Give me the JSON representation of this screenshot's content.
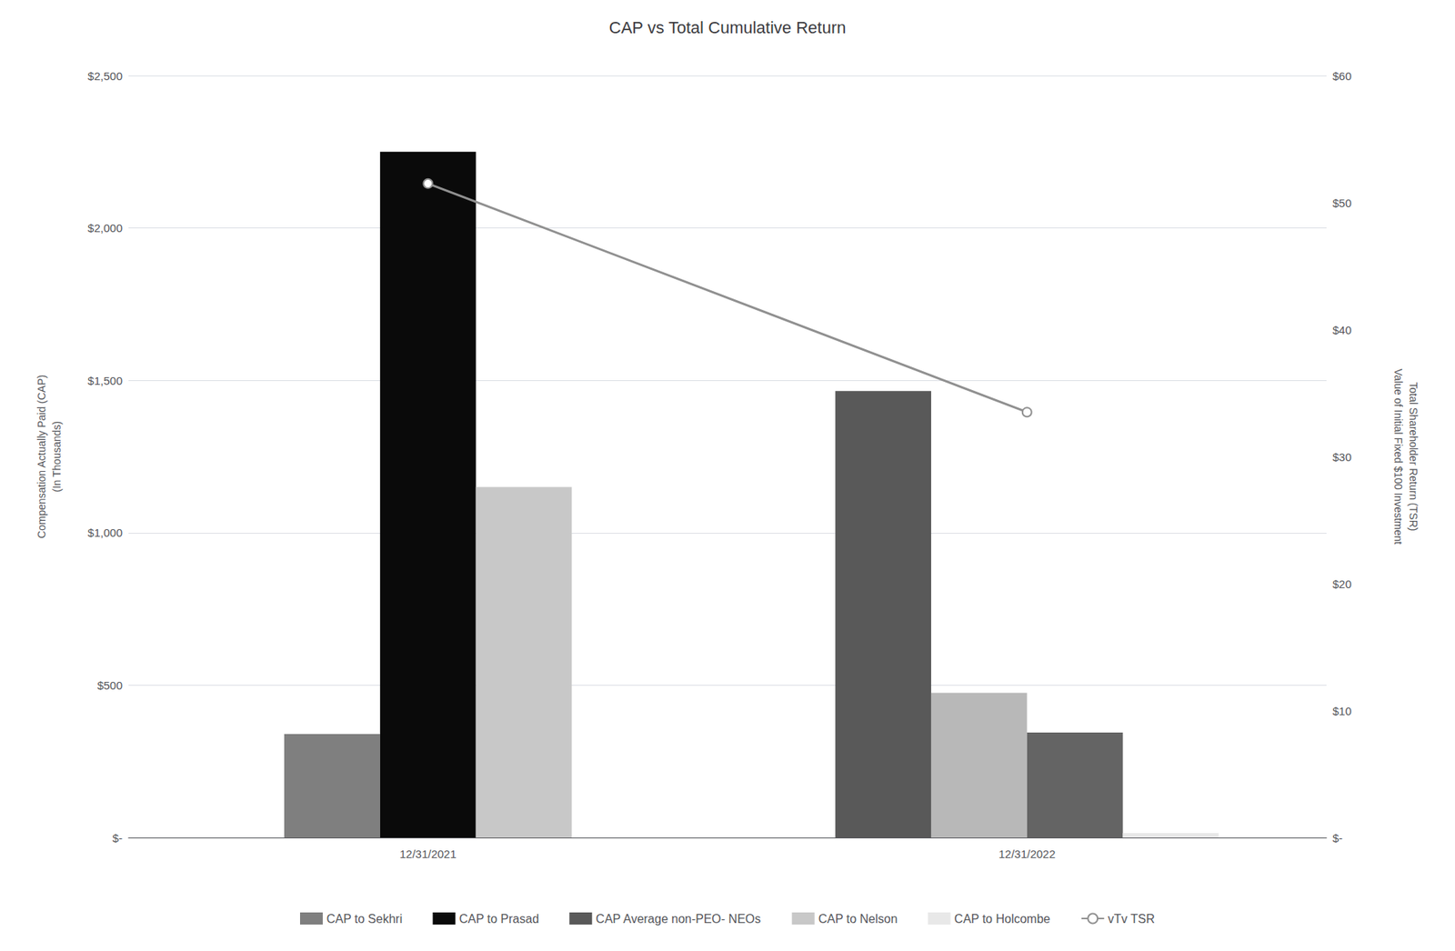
{
  "chart_data": {
    "type": "bar",
    "title": "CAP vs Total Cumulative Return",
    "ylabel": "Compensation Actually Paid (CAP)\n(In Thousands)",
    "y2label": "Total Shareholder Return (TSR)\nValue of Initial Fixed $100 Investment",
    "categories": [
      "12/31/2021",
      "12/31/2022"
    ],
    "ylim": [
      0,
      2500
    ],
    "yticks": [
      {
        "value": 0,
        "label": "$-"
      },
      {
        "value": 500,
        "label": "$500"
      },
      {
        "value": 1000,
        "label": "$1,000"
      },
      {
        "value": 1500,
        "label": "$1,500"
      },
      {
        "value": 2000,
        "label": "$2,000"
      },
      {
        "value": 2500,
        "label": "$2,500"
      }
    ],
    "y2lim": [
      0,
      60
    ],
    "y2ticks": [
      {
        "value": 0,
        "label": "$-"
      },
      {
        "value": 10,
        "label": "$10"
      },
      {
        "value": 20,
        "label": "$20"
      },
      {
        "value": 30,
        "label": "$30"
      },
      {
        "value": 40,
        "label": "$40"
      },
      {
        "value": 50,
        "label": "$50"
      },
      {
        "value": 60,
        "label": "$60"
      }
    ],
    "grid": true,
    "legend": "bottom",
    "series": [
      {
        "name": "CAP to Sekhri",
        "type": "bar",
        "color": "#7f7f7f",
        "values": [
          340,
          null
        ]
      },
      {
        "name": "CAP to Prasad",
        "type": "bar",
        "color": "#0a0a0a",
        "values": [
          2250,
          null
        ]
      },
      {
        "name": "CAP Average non-PEO- NEOs",
        "type": "bar",
        "color": "#595959",
        "values": [
          null,
          1465
        ]
      },
      {
        "name": "CAP to Nelson",
        "type": "bar",
        "color": "#c8c8c8",
        "colors": [
          "#c8c8c8",
          "#b8b8b8"
        ],
        "values": [
          1150,
          475
        ]
      },
      {
        "type": "bar",
        "color": "#646464",
        "values": [
          null,
          345
        ]
      },
      {
        "name": "CAP to Holcombe",
        "type": "bar",
        "color": "#e8e8e8",
        "values": [
          null,
          15
        ]
      },
      {
        "name": "vTv TSR",
        "type": "line",
        "axis": "y2",
        "color": "#909090",
        "marker": "circle",
        "values": [
          51.5,
          33.5
        ]
      }
    ]
  }
}
